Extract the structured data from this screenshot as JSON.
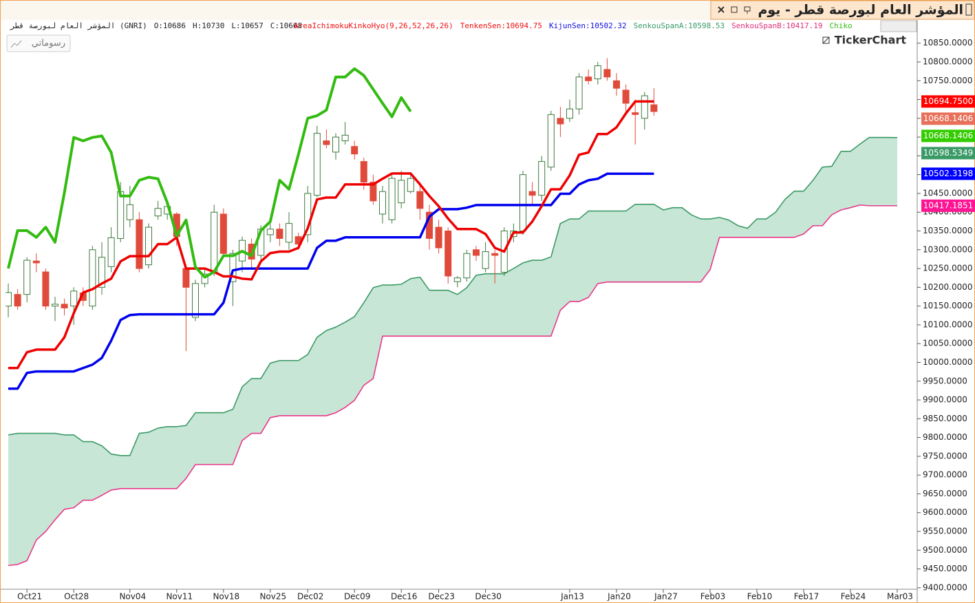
{
  "chart_data": {
    "type": "candlestick",
    "title": "المؤشر العام لبورصة قطر - يوم",
    "symbol_line": "المؤشر العام لبورصة قطر (GNRI)",
    "ohlc_text": [
      "O:10686",
      "H:10730",
      "L:10657",
      "C:10668"
    ],
    "indicator_labels": [
      {
        "text": "AreaIchimokuKinkoHyo(9,26,52,26,26)",
        "color": "#ee1111"
      },
      {
        "text": "TenkenSen:10694.75",
        "color": "#ee1111"
      },
      {
        "text": "KijunSen:10502.32",
        "color": "#1111dd"
      },
      {
        "text": "SenkouSpanA:10598.53",
        "color": "#3a9a66"
      },
      {
        "text": "SenkouSpanB:10417.19",
        "color": "#e0307a"
      },
      {
        "text": "Chiko",
        "color": "#33bb11"
      }
    ],
    "drawings_button": "رسوماتي",
    "logo": "TickerChart",
    "categories": [
      null,
      null,
      "Oct21",
      null,
      null,
      null,
      null,
      "Oct28",
      null,
      null,
      null,
      null,
      null,
      "Nov04",
      null,
      null,
      null,
      null,
      "Nov11",
      null,
      null,
      null,
      null,
      "Nov18",
      null,
      null,
      null,
      null,
      "Nov25",
      null,
      null,
      null,
      "Dec02",
      null,
      null,
      null,
      null,
      "Dec09",
      null,
      null,
      null,
      null,
      "Dec16",
      null,
      null,
      null,
      "Dec23",
      null,
      null,
      null,
      null,
      "Dec30",
      null,
      null,
      null,
      null,
      null,
      null,
      null,
      null,
      "Jan13",
      null,
      null,
      null,
      null,
      "Jan20",
      null,
      null,
      null,
      null,
      "Jan27",
      null,
      null,
      null,
      null,
      "Feb03",
      null,
      null,
      null,
      null,
      "Feb10",
      null,
      null,
      null,
      null,
      "Feb17",
      null,
      null,
      null,
      null,
      "Feb24",
      null,
      null,
      null,
      null,
      "Mar03",
      null
    ],
    "ohlc": {
      "up_color": "#3d7a3d",
      "down_color": "#e04a3a",
      "open": [
        10150,
        10181,
        10181,
        10270,
        10241,
        10150,
        10155,
        10150,
        10185,
        10150,
        10200,
        10255,
        10330,
        10380,
        10380,
        10260,
        10390,
        10395,
        10395,
        10250,
        10120,
        10210,
        10240,
        10395,
        10215,
        10270,
        10315,
        10285,
        10340,
        10355,
        10320,
        10335,
        10340,
        10445,
        10590,
        10560,
        10590,
        10575,
        10535,
        10480,
        10395,
        10380,
        10425,
        10455,
        10455,
        10400,
        10360,
        10350,
        10215,
        10225,
        10300,
        10250,
        10290,
        10240,
        10335,
        10350,
        10455,
        10445,
        10520,
        10650,
        10650,
        10675,
        10760,
        10755,
        10780,
        10750,
        10725,
        10665,
        10650,
        10686,
        null,
        null,
        null,
        null,
        null,
        null,
        null,
        null,
        null,
        null,
        null,
        null,
        null,
        null,
        null,
        null,
        null,
        null,
        null,
        null,
        null,
        null,
        null,
        null,
        null,
        null,
        null
      ],
      "high": [
        10210,
        10195,
        10280,
        10290,
        10250,
        10175,
        10170,
        10200,
        10200,
        10310,
        10320,
        10360,
        10480,
        10470,
        10400,
        10370,
        10430,
        10430,
        10400,
        10260,
        10220,
        10250,
        10420,
        10410,
        10300,
        10335,
        10330,
        10365,
        10370,
        10370,
        10400,
        10345,
        10470,
        10630,
        10620,
        10610,
        10640,
        10590,
        10545,
        10500,
        10470,
        10500,
        10510,
        10500,
        10480,
        10420,
        10380,
        10360,
        10230,
        10300,
        10310,
        10320,
        10300,
        10360,
        10370,
        10510,
        10480,
        10550,
        10670,
        10680,
        10700,
        10770,
        10780,
        10800,
        10810,
        10770,
        10740,
        10700,
        10720,
        10730,
        null,
        null,
        null,
        null,
        null,
        null,
        null,
        null,
        null,
        null,
        null,
        null,
        null,
        null,
        null,
        null,
        null,
        null,
        null,
        null,
        null,
        null,
        null,
        null,
        null,
        null,
        null
      ],
      "low": [
        10120,
        10140,
        10160,
        10240,
        10140,
        10110,
        10125,
        10100,
        10150,
        10140,
        10180,
        10240,
        10320,
        10360,
        10240,
        10250,
        10380,
        10380,
        10310,
        10030,
        10110,
        10200,
        10230,
        10280,
        10150,
        10240,
        10250,
        10270,
        10320,
        10310,
        10300,
        10300,
        10320,
        10440,
        10570,
        10540,
        10580,
        10540,
        10460,
        10420,
        10370,
        10370,
        10410,
        10450,
        10380,
        10300,
        10290,
        10210,
        10200,
        10215,
        10270,
        10240,
        10210,
        10230,
        10320,
        10340,
        10420,
        10430,
        10510,
        10600,
        10640,
        10660,
        10740,
        10740,
        10750,
        10710,
        10660,
        10580,
        10620,
        10657,
        null,
        null,
        null,
        null,
        null,
        null,
        null,
        null,
        null,
        null,
        null,
        null,
        null,
        null,
        null,
        null,
        null,
        null,
        null,
        null,
        null,
        null,
        null,
        null,
        null,
        null,
        null
      ],
      "close": [
        10186,
        10150,
        10272,
        10265,
        10150,
        10155,
        10145,
        10190,
        10165,
        10300,
        10280,
        10332,
        10455,
        10420,
        10250,
        10360,
        10410,
        10415,
        10335,
        10200,
        10210,
        10235,
        10400,
        10290,
        10290,
        10325,
        10275,
        10355,
        10355,
        10330,
        10370,
        10315,
        10450,
        10610,
        10580,
        10600,
        10605,
        10555,
        10480,
        10430,
        10455,
        10490,
        10485,
        10490,
        10410,
        10330,
        10305,
        10230,
        10225,
        10290,
        10285,
        10295,
        10285,
        10350,
        10350,
        10500,
        10445,
        10535,
        10660,
        10635,
        10675,
        10760,
        10750,
        10790,
        10760,
        10730,
        10690,
        10660,
        10710,
        10668,
        null,
        null,
        null,
        null,
        null,
        null,
        null,
        null,
        null,
        null,
        null,
        null,
        null,
        null,
        null,
        null,
        null,
        null,
        null,
        null,
        null,
        null,
        null,
        null,
        null,
        null,
        null
      ]
    },
    "series": [
      {
        "color": "#3a9a66",
        "width": 1.6,
        "values": [
          9807,
          9811,
          9811,
          9811,
          9811,
          9811,
          9807,
          9807,
          9789,
          9789,
          9778,
          9756,
          9752,
          9752,
          9811,
          9814,
          9825,
          9829,
          9829,
          9832,
          9866,
          9866,
          9866,
          9866,
          9875,
          9935,
          9957,
          9957,
          9998,
          10005,
          10005,
          10005,
          10021,
          10067,
          10085,
          10094,
          10107,
          10122,
          10159,
          10199,
          10206,
          10206,
          10208,
          10223,
          10227,
          10192,
          10192,
          10192,
          10181,
          10199,
          10232,
          10236,
          10236,
          10236,
          10250,
          10265,
          10272,
          10272,
          10281,
          10370,
          10382,
          10382,
          10403,
          10403,
          10403,
          10403,
          10403,
          10421,
          10421,
          10421,
          10406,
          10412,
          10412,
          10393,
          10382,
          10382,
          10386,
          10379,
          10364,
          10357,
          10382,
          10382,
          10400,
          10434,
          10456,
          10456,
          10485,
          10520,
          10522,
          10562,
          10562,
          10581,
          10599,
          10599,
          10599,
          10598.53,
          null
        ]
      },
      {
        "color": "#e8378a",
        "width": 1.6,
        "values": [
          9459,
          9462,
          9472,
          9527,
          9550,
          9581,
          9609,
          9613,
          9633,
          9633,
          9646,
          9660,
          9664,
          9664,
          9664,
          9664,
          9664,
          9664,
          9664,
          9691,
          9728,
          9728,
          9728,
          9728,
          9728,
          9792,
          9811,
          9811,
          9853,
          9858,
          9858,
          9858,
          9858,
          9858,
          9858,
          9866,
          9880,
          9899,
          9939,
          9957,
          10070,
          10070,
          10070,
          10070,
          10070,
          10070,
          10070,
          10070,
          10070,
          10070,
          10070,
          10070,
          10070,
          10070,
          10070,
          10070,
          10070,
          10070,
          10070,
          10139,
          10162,
          10162,
          10173,
          10210,
          10214,
          10214,
          10214,
          10214,
          10214,
          10214,
          10214,
          10214,
          10214,
          10214,
          10214,
          10247,
          10333,
          10333,
          10333,
          10333,
          10333,
          10333,
          10333,
          10333,
          10333,
          10342,
          10364,
          10364,
          10393,
          10406,
          10412,
          10419,
          10417.19,
          10417.19,
          10417.19,
          10417.19,
          null
        ]
      },
      {
        "color": "#0000ee",
        "width": 3.5,
        "values": [
          9930,
          9930,
          9972,
          9976,
          9976,
          9976,
          9976,
          9976,
          9985,
          9994,
          10012,
          10058,
          10113,
          10126,
          10128,
          10128,
          10128,
          10128,
          10128,
          10128,
          10128,
          10128,
          10128,
          10159,
          10245,
          10250,
          10250,
          10250,
          10250,
          10250,
          10250,
          10250,
          10250,
          10305,
          10324,
          10324,
          10333,
          10333,
          10333,
          10333,
          10333,
          10333,
          10333,
          10333,
          10333,
          10388,
          10408,
          10408,
          10408,
          10412,
          10419,
          10419,
          10419,
          10419,
          10419,
          10419,
          10419,
          10419,
          10419,
          10449,
          10449,
          10474,
          10485,
          10489,
          10502.32,
          10502.32,
          10502.32,
          10502.32,
          10502.32,
          10502.32,
          null,
          null,
          null,
          null,
          null,
          null,
          null,
          null,
          null,
          null,
          null,
          null,
          null,
          null,
          null,
          null,
          null,
          null,
          null,
          null,
          null,
          null,
          null,
          null,
          null,
          null,
          null
        ]
      },
      {
        "color": "#ee0000",
        "width": 3.5,
        "values": [
          9985,
          9985,
          10027,
          10034,
          10034,
          10034,
          10067,
          10131,
          10186,
          10195,
          10210,
          10223,
          10269,
          10283,
          10283,
          10283,
          10315,
          10315,
          10333,
          10250,
          10250,
          10250,
          10241,
          10229,
          10229,
          10223,
          10221,
          10269,
          10291,
          10295,
          10295,
          10305,
          10357,
          10434,
          10439,
          10439,
          10474,
          10474,
          10474,
          10474,
          10489,
          10503,
          10503,
          10503,
          10474,
          10443,
          10416,
          10383,
          10355,
          10355,
          10355,
          10342,
          10305,
          10295,
          10346,
          10346,
          10375,
          10416,
          10461,
          10461,
          10498,
          10553,
          10559,
          10608,
          10608,
          10626,
          10663,
          10694.75,
          10694.75,
          10694.75,
          null,
          null,
          null,
          null,
          null,
          null,
          null,
          null,
          null,
          null,
          null,
          null,
          null,
          null,
          null,
          null,
          null,
          null,
          null,
          null,
          null,
          null,
          null,
          null,
          null,
          null,
          null
        ]
      },
      {
        "color": "#33bb11",
        "width": 4,
        "values": [
          10250,
          10351,
          10351,
          10333,
          10360,
          10320,
          10452,
          10599,
          10590,
          10599,
          10603,
          10559,
          10443,
          10443,
          10485,
          10493,
          10489,
          10425,
          10337,
          10379,
          10254,
          10227,
          10241,
          10284,
          10284,
          10296,
          10284,
          10351,
          10375,
          10485,
          10461,
          10553,
          10650,
          10657,
          10672,
          10760,
          10760,
          10782,
          10764,
          10727,
          10690,
          10654,
          10705,
          10668,
          null,
          null,
          null,
          null,
          null,
          null,
          null,
          null,
          null,
          null,
          null,
          null,
          null,
          null,
          null,
          null,
          null,
          null,
          null,
          null,
          null,
          null,
          null,
          null,
          null,
          null,
          null,
          null,
          null,
          null,
          null,
          null,
          null,
          null,
          null,
          null,
          null,
          null,
          null,
          null,
          null,
          null,
          null,
          null,
          null,
          null,
          null,
          null,
          null,
          null,
          null,
          null,
          null
        ]
      }
    ],
    "cloud_color": "#c8e6d5",
    "price_labels": [
      {
        "value": 10694.75,
        "label": "10694.7500",
        "color": "#ff0000"
      },
      {
        "value": 10668.1406,
        "label": "10668.1406",
        "color": "#e8705a"
      },
      {
        "value": 10668.1406,
        "label": "10668.1406",
        "color": "#33cc00"
      },
      {
        "value": 10598.5349,
        "label": "10598.5349",
        "color": "#3a9a66"
      },
      {
        "value": 10502.3198,
        "label": "10502.3198",
        "color": "#0000ff"
      },
      {
        "value": 10417.1851,
        "label": "10417.1851",
        "color": "#ff1493"
      }
    ],
    "ylim": [
      9396,
      10910
    ],
    "yticks": [
      {
        "value": 10850,
        "label": "10850.0000"
      },
      {
        "value": 10800,
        "label": "10800.0000"
      },
      {
        "value": 10750,
        "label": "10750.0000"
      },
      {
        "value": 10700,
        "label": "10700.0000"
      },
      {
        "value": 10650,
        "label": "10650.0000"
      },
      {
        "value": 10600,
        "label": "10600.0000"
      },
      {
        "value": 10550,
        "label": "10550.0000"
      },
      {
        "value": 10500,
        "label": "10500.0000"
      },
      {
        "value": 10450,
        "label": "10450.0000"
      },
      {
        "value": 10400,
        "label": "10400.0000"
      },
      {
        "value": 10350,
        "label": "10350.0000"
      },
      {
        "value": 10300,
        "label": "10300.0000"
      },
      {
        "value": 10250,
        "label": "10250.0000"
      },
      {
        "value": 10200,
        "label": "10200.0000"
      },
      {
        "value": 10150,
        "label": "10150.0000"
      },
      {
        "value": 10100,
        "label": "10100.0000"
      },
      {
        "value": 10050,
        "label": "10050.0000"
      },
      {
        "value": 10000,
        "label": "10000.0000"
      },
      {
        "value": 9950,
        "label": "9950.0000"
      },
      {
        "value": 9900,
        "label": "9900.0000"
      },
      {
        "value": 9850,
        "label": "9850.0000"
      },
      {
        "value": 9800,
        "label": "9800.0000"
      },
      {
        "value": 9750,
        "label": "9750.0000"
      },
      {
        "value": 9700,
        "label": "9700.0000"
      },
      {
        "value": 9650,
        "label": "9650.0000"
      },
      {
        "value": 9600,
        "label": "9600.0000"
      },
      {
        "value": 9550,
        "label": "9550.0000"
      },
      {
        "value": 9500,
        "label": "9500.0000"
      },
      {
        "value": 9450,
        "label": "9450.0000"
      },
      {
        "value": 9400,
        "label": "9400.0000"
      }
    ],
    "grid": false
  }
}
